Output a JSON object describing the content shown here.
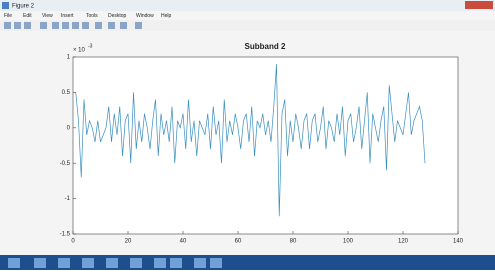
{
  "window": {
    "title": "Figure 2",
    "menu": [
      "File",
      "Edit",
      "View",
      "Insert",
      "Tools",
      "Desktop",
      "Window",
      "Help"
    ]
  },
  "chart_data": {
    "type": "line",
    "title": "Subband 2",
    "y_scale_base": "× 10",
    "y_scale_exponent": "-3",
    "x": [
      1,
      2,
      3,
      4,
      5,
      6,
      7,
      8,
      9,
      10,
      11,
      12,
      13,
      14,
      15,
      16,
      17,
      18,
      19,
      20,
      21,
      22,
      23,
      24,
      25,
      26,
      27,
      28,
      29,
      30,
      31,
      32,
      33,
      34,
      35,
      36,
      37,
      38,
      39,
      40,
      41,
      42,
      43,
      44,
      45,
      46,
      47,
      48,
      49,
      50,
      51,
      52,
      53,
      54,
      55,
      56,
      57,
      58,
      59,
      60,
      61,
      62,
      63,
      64,
      65,
      66,
      67,
      68,
      69,
      70,
      71,
      72,
      73,
      74,
      75,
      76,
      77,
      78,
      79,
      80,
      81,
      82,
      83,
      84,
      85,
      86,
      87,
      88,
      89,
      90,
      91,
      92,
      93,
      94,
      95,
      96,
      97,
      98,
      99,
      100,
      101,
      102,
      103,
      104,
      105,
      106,
      107,
      108,
      109,
      110,
      111,
      112,
      113,
      114,
      115,
      116,
      117,
      118,
      119,
      120,
      121,
      122,
      123,
      124,
      125,
      126,
      127,
      128
    ],
    "values": [
      0.5,
      0.1,
      -0.7,
      0.4,
      -0.1,
      0.1,
      0.0,
      -0.2,
      0.1,
      -0.2,
      -0.1,
      0.0,
      0.3,
      -0.2,
      0.2,
      -0.1,
      0.3,
      -0.4,
      0.1,
      0.2,
      -0.5,
      0.5,
      -0.3,
      0.1,
      -0.2,
      0.2,
      0.0,
      -0.3,
      0.1,
      0.4,
      -0.4,
      0.2,
      -0.1,
      0.1,
      -0.2,
      0.3,
      -0.5,
      0.1,
      0.0,
      0.2,
      -0.3,
      0.4,
      -0.2,
      0.1,
      -0.4,
      0.1,
      0.0,
      -0.1,
      0.2,
      -0.3,
      0.3,
      -0.1,
      0.1,
      -0.5,
      0.4,
      -0.2,
      0.1,
      -0.1,
      0.2,
      0.0,
      -0.3,
      0.1,
      0.2,
      -0.2,
      0.3,
      -0.4,
      0.1,
      0.0,
      0.2,
      -0.1,
      0.1,
      -0.2,
      0.3,
      0.9,
      -1.25,
      0.2,
      0.4,
      -0.4,
      0.1,
      -0.2,
      0.2,
      0.0,
      -0.3,
      0.1,
      0.2,
      -0.3,
      0.1,
      0.2,
      -0.2,
      0.0,
      0.3,
      -0.3,
      0.1,
      0.0,
      -0.2,
      0.2,
      -0.1,
      0.3,
      -0.4,
      0.1,
      0.2,
      -0.2,
      0.0,
      0.3,
      -0.3,
      0.1,
      0.5,
      -0.5,
      0.2,
      0.0,
      -0.2,
      0.1,
      0.3,
      -0.6,
      0.6,
      0.2,
      -0.2,
      0.1,
      0.0,
      -0.1,
      0.2,
      0.5,
      -0.1,
      0.1,
      0.2,
      0.3,
      0.1,
      -0.5
    ],
    "color": "#3a8fc0",
    "xlim": [
      0,
      140
    ],
    "xticks": [
      0,
      20,
      40,
      60,
      80,
      100,
      120,
      140
    ],
    "ylim": [
      -1.5,
      1
    ],
    "yticks": [
      -1.5,
      -1,
      -0.5,
      0,
      0.5,
      1
    ]
  }
}
